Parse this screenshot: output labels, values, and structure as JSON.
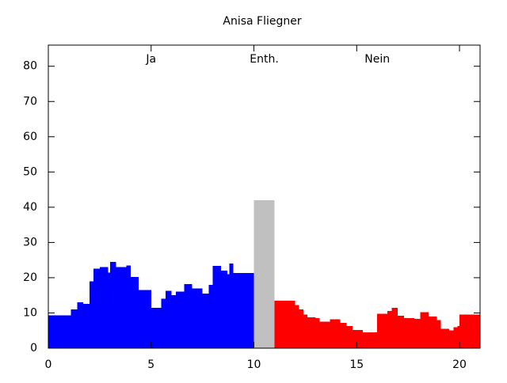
{
  "chart_data": {
    "type": "histogram",
    "title": "Anisa Fliegner",
    "xlim": [
      0,
      21
    ],
    "ylim": [
      0,
      86
    ],
    "xticks": [
      0,
      5,
      10,
      15,
      20
    ],
    "yticks": [
      0,
      10,
      20,
      30,
      40,
      50,
      60,
      70,
      80
    ],
    "series": [
      {
        "name": "Ja",
        "color": "#0000ff",
        "bins": [
          0,
          1.1,
          1.4,
          1.7,
          2.0,
          2.2,
          2.5,
          2.9,
          3.0,
          3.3,
          3.8,
          4.0,
          4.4,
          5.0,
          5.5,
          5.7,
          6.0,
          6.2,
          6.6,
          7.0,
          7.5,
          7.8,
          8.0,
          8.4,
          8.7,
          8.8,
          9.0,
          10
        ],
        "values": [
          9.3,
          11,
          13,
          12.6,
          19,
          22.6,
          23,
          21.5,
          24.5,
          23,
          23.5,
          20.2,
          16.5,
          11.5,
          14,
          16.3,
          15,
          16,
          18.2,
          17,
          15.5,
          18,
          23.3,
          22,
          21,
          24,
          21.3
        ]
      },
      {
        "name": "Enth.",
        "color": "#c0c0c0",
        "bins": [
          10,
          11
        ],
        "values": [
          42
        ]
      },
      {
        "name": "Nein",
        "color": "#ff0000",
        "bins": [
          11,
          12,
          12.2,
          12.4,
          12.6,
          13,
          13.2,
          13.7,
          14.2,
          14.5,
          14.8,
          15.3,
          16,
          16.5,
          16.7,
          17,
          17.3,
          17.8,
          18.1,
          18.5,
          18.9,
          19.1,
          19.5,
          19.7,
          19.9,
          20,
          21
        ],
        "values": [
          13.5,
          12.2,
          11,
          9.5,
          8.8,
          8.5,
          7.5,
          8.2,
          7.2,
          6.3,
          5.2,
          4.5,
          9.8,
          10.5,
          11.5,
          9.2,
          8.5,
          8.3,
          10.2,
          9,
          8,
          5.5,
          5,
          6,
          6.3,
          9.5
        ]
      }
    ]
  }
}
